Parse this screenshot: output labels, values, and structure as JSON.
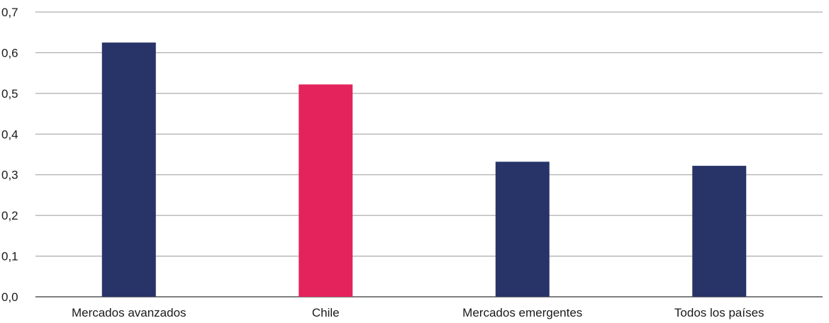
{
  "chart_data": {
    "type": "bar",
    "title": "",
    "xlabel": "",
    "ylabel": "",
    "categories": [
      "Mercados avanzados",
      "Chile",
      "Mercados emergentes",
      "Todos los países"
    ],
    "values": [
      0.625,
      0.522,
      0.332,
      0.322
    ],
    "bar_colors": [
      "#283468",
      "#e4235c",
      "#283468",
      "#283468"
    ],
    "ylim": [
      0,
      0.7
    ],
    "yticks": [
      0.0,
      0.1,
      0.2,
      0.3,
      0.4,
      0.5,
      0.6,
      0.7
    ],
    "ytick_labels": [
      "0,0",
      "0,1",
      "0,2",
      "0,3",
      "0,4",
      "0,5",
      "0,6",
      "0,7"
    ],
    "grid": true,
    "legend": "none"
  }
}
